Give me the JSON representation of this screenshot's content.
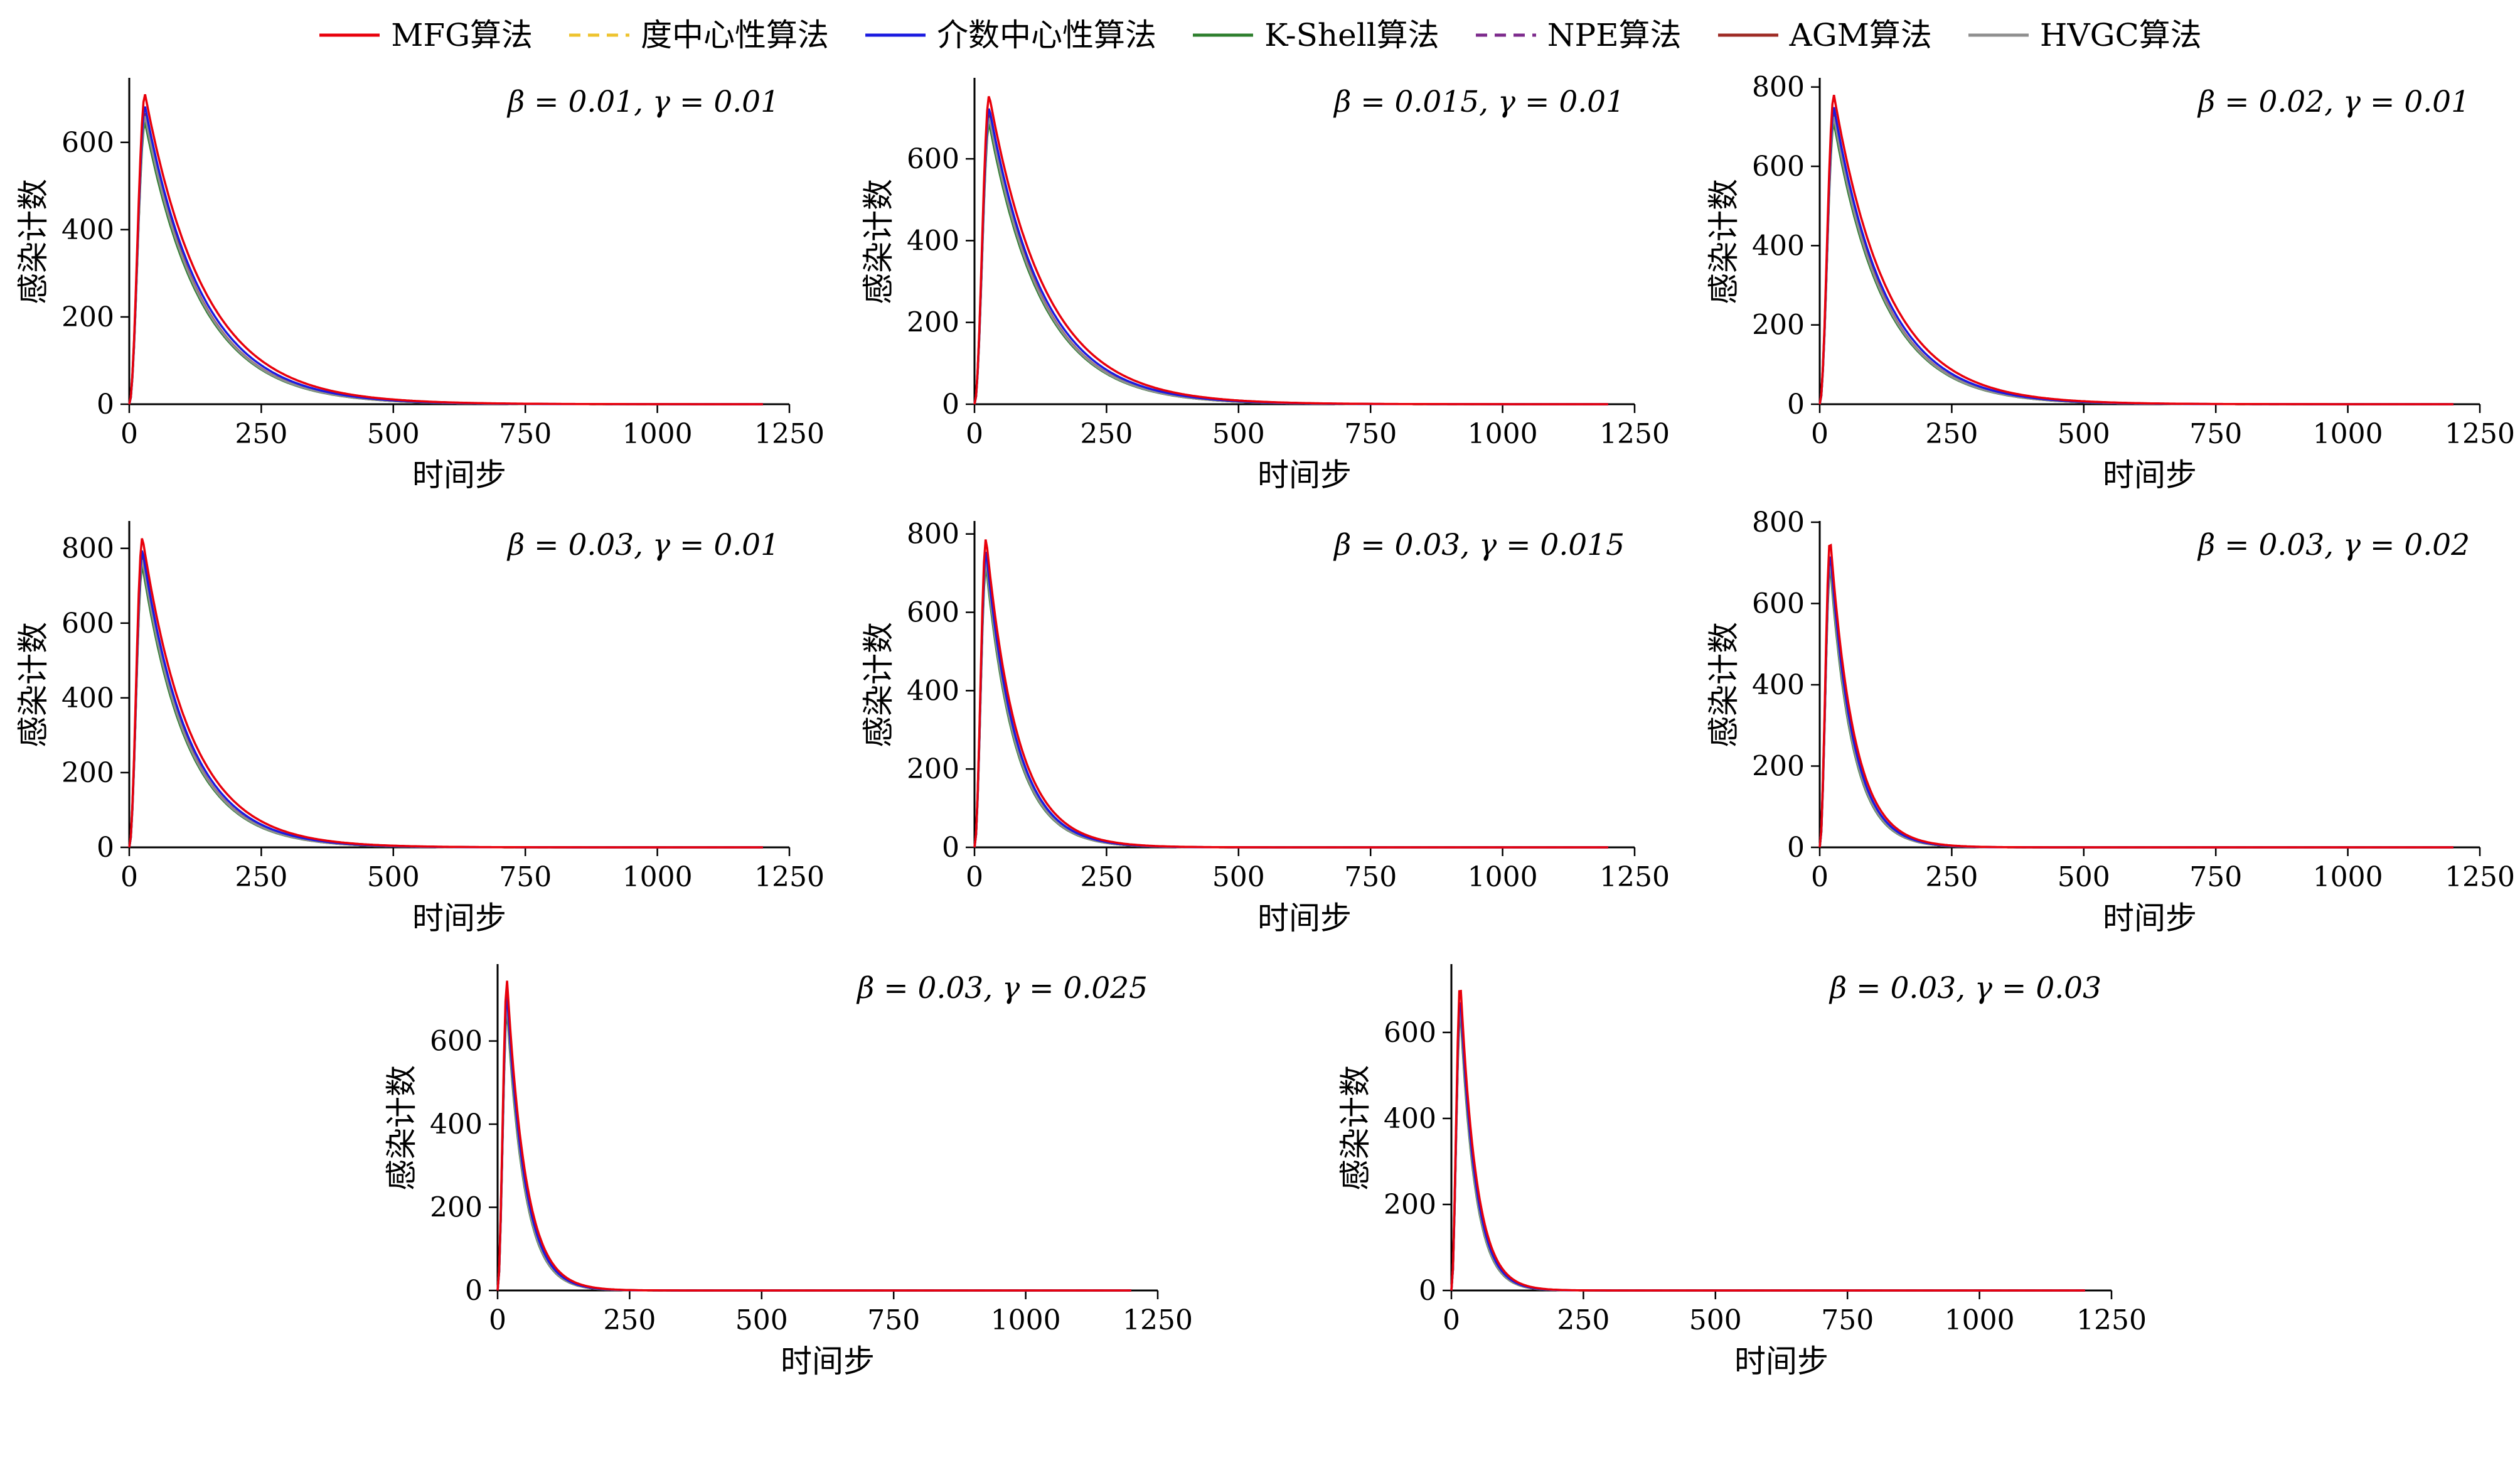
{
  "figure": {
    "background": "#ffffff",
    "description_xlabel": "时间步",
    "description_ylabel": "感染计数"
  },
  "legend": {
    "items": [
      {
        "label": "MFG算法",
        "color": "#e8000b",
        "dash": false
      },
      {
        "label": "度中心性算法",
        "color": "#eec32e",
        "dash": true
      },
      {
        "label": "介数中心性算法",
        "color": "#1a1ae0",
        "dash": false
      },
      {
        "label": "K-Shell算法",
        "color": "#2d7f2d",
        "dash": false
      },
      {
        "label": "NPE算法",
        "color": "#7d2a8c",
        "dash": true
      },
      {
        "label": "AGM算法",
        "color": "#9e2b25",
        "dash": false
      },
      {
        "label": "HVGC算法",
        "color": "#8f8f8f",
        "dash": false
      }
    ]
  },
  "chart_data": [
    {
      "type": "line",
      "title": "β = 0.01, γ = 0.01",
      "beta": 0.01,
      "gamma": 0.01,
      "xlabel": "时间步",
      "ylabel": "感染计数",
      "xlim": [
        0,
        1250
      ],
      "xticks": [
        0,
        250,
        500,
        750,
        1000,
        1250
      ],
      "ylim": [
        0,
        745
      ],
      "yticks": [
        0,
        200,
        400,
        600
      ],
      "peak_time": 30,
      "decay_tau": 105,
      "series_names": [
        "MFG算法",
        "度中心性算法",
        "介数中心性算法",
        "K-Shell算法",
        "NPE算法",
        "AGM算法",
        "HVGC算法"
      ],
      "peaks": [
        710,
        653,
        682,
        646,
        653,
        667,
        660
      ],
      "mfg_sample": {
        "t": [
          0,
          30,
          82,
          135,
          188,
          240,
          345,
          450,
          555,
          900,
          1200
        ],
        "I": [
          0,
          710,
          431,
          261,
          158,
          96,
          36,
          13,
          5,
          0,
          0
        ]
      }
    },
    {
      "type": "line",
      "title": "β = 0.015, γ = 0.01",
      "beta": 0.015,
      "gamma": 0.01,
      "xlabel": "时间步",
      "ylabel": "感染计数",
      "xlim": [
        0,
        1250
      ],
      "xticks": [
        0,
        250,
        500,
        750,
        1000,
        1250
      ],
      "ylim": [
        0,
        795
      ],
      "yticks": [
        0,
        200,
        400,
        600
      ],
      "peak_time": 28,
      "decay_tau": 100,
      "series_names": [
        "MFG算法",
        "度中心性算法",
        "介数中心性算法",
        "K-Shell算法",
        "NPE算法",
        "AGM算法",
        "HVGC算法"
      ],
      "peaks": [
        755,
        695,
        725,
        687,
        695,
        710,
        702
      ],
      "mfg_sample": {
        "t": [
          0,
          28,
          78,
          128,
          178,
          228,
          328,
          428,
          528,
          900,
          1200
        ],
        "I": [
          0,
          755,
          458,
          278,
          168,
          102,
          38,
          14,
          5,
          0,
          0
        ]
      }
    },
    {
      "type": "line",
      "title": "β = 0.02, γ = 0.01",
      "beta": 0.02,
      "gamma": 0.01,
      "xlabel": "时间步",
      "ylabel": "感染计数",
      "xlim": [
        0,
        1250
      ],
      "xticks": [
        0,
        250,
        500,
        750,
        1000,
        1250
      ],
      "ylim": [
        0,
        820
      ],
      "yticks": [
        0,
        200,
        400,
        600,
        800
      ],
      "peak_time": 27,
      "decay_tau": 95,
      "series_names": [
        "MFG算法",
        "度中心性算法",
        "介数中心性算法",
        "K-Shell算法",
        "NPE算法",
        "AGM算法",
        "HVGC算法"
      ],
      "peaks": [
        780,
        718,
        749,
        710,
        718,
        733,
        725
      ],
      "mfg_sample": {
        "t": [
          0,
          27,
          75,
          122,
          170,
          217,
          312,
          407,
          502,
          900,
          1200
        ],
        "I": [
          0,
          780,
          473,
          287,
          174,
          105,
          39,
          14,
          5,
          0,
          0
        ]
      }
    },
    {
      "type": "line",
      "title": "β = 0.03, γ = 0.01",
      "beta": 0.03,
      "gamma": 0.01,
      "xlabel": "时间步",
      "ylabel": "感染计数",
      "xlim": [
        0,
        1250
      ],
      "xticks": [
        0,
        250,
        500,
        750,
        1000,
        1250
      ],
      "ylim": [
        0,
        870
      ],
      "yticks": [
        0,
        200,
        400,
        600,
        800
      ],
      "peak_time": 25,
      "decay_tau": 85,
      "series_names": [
        "MFG算法",
        "度中心性算法",
        "介数中心性算法",
        "K-Shell算法",
        "NPE算法",
        "AGM算法",
        "HVGC算法"
      ],
      "peaks": [
        830,
        764,
        797,
        755,
        764,
        780,
        772
      ],
      "mfg_sample": {
        "t": [
          0,
          25,
          68,
          110,
          152,
          195,
          280,
          365,
          450,
          900,
          1200
        ],
        "I": [
          0,
          830,
          504,
          305,
          185,
          112,
          42,
          15,
          6,
          0,
          0
        ]
      }
    },
    {
      "type": "line",
      "title": "β = 0.03, γ = 0.015",
      "beta": 0.03,
      "gamma": 0.015,
      "xlabel": "时间步",
      "ylabel": "感染计数",
      "xlim": [
        0,
        1250
      ],
      "xticks": [
        0,
        250,
        500,
        750,
        1000,
        1250
      ],
      "ylim": [
        0,
        830
      ],
      "yticks": [
        0,
        200,
        400,
        600,
        800
      ],
      "peak_time": 22,
      "decay_tau": 55,
      "series_names": [
        "MFG算法",
        "度中心性算法",
        "介数中心性算法",
        "K-Shell算法",
        "NPE算法",
        "AGM算法",
        "HVGC算法"
      ],
      "peaks": [
        790,
        727,
        758,
        719,
        727,
        743,
        735
      ],
      "mfg_sample": {
        "t": [
          0,
          22,
          50,
          77,
          105,
          132,
          187,
          242,
          297,
          800,
          1200
        ],
        "I": [
          0,
          790,
          480,
          291,
          176,
          107,
          40,
          14,
          6,
          0,
          0
        ]
      }
    },
    {
      "type": "line",
      "title": "β = 0.03, γ = 0.02",
      "beta": 0.03,
      "gamma": 0.02,
      "xlabel": "时间步",
      "ylabel": "感染计数",
      "xlim": [
        0,
        1250
      ],
      "xticks": [
        0,
        250,
        500,
        750,
        1000,
        1250
      ],
      "ylim": [
        0,
        800
      ],
      "yticks": [
        0,
        200,
        400,
        600,
        800
      ],
      "peak_time": 20,
      "decay_tau": 42,
      "series_names": [
        "MFG算法",
        "度中心性算法",
        "介数中心性算法",
        "K-Shell算法",
        "NPE算法",
        "AGM算法",
        "HVGC算法"
      ],
      "peaks": [
        760,
        699,
        730,
        692,
        699,
        714,
        707
      ],
      "mfg_sample": {
        "t": [
          0,
          20,
          41,
          62,
          83,
          104,
          146,
          188,
          230,
          700,
          1200
        ],
        "I": [
          0,
          760,
          461,
          280,
          169,
          103,
          38,
          14,
          5,
          0,
          0
        ]
      }
    },
    {
      "type": "line",
      "title": "β = 0.03, γ = 0.025",
      "beta": 0.03,
      "gamma": 0.025,
      "xlabel": "时间步",
      "ylabel": "感染计数",
      "xlim": [
        0,
        1250
      ],
      "xticks": [
        0,
        250,
        500,
        750,
        1000,
        1250
      ],
      "ylim": [
        0,
        782
      ],
      "yticks": [
        0,
        200,
        400,
        600
      ],
      "peak_time": 18,
      "decay_tau": 33,
      "series_names": [
        "MFG算法",
        "度中心性算法",
        "介数中心性算法",
        "K-Shell算法",
        "NPE算法",
        "AGM算法",
        "HVGC算法"
      ],
      "peaks": [
        745,
        685,
        715,
        678,
        685,
        700,
        693
      ],
      "mfg_sample": {
        "t": [
          0,
          18,
          35,
          51,
          68,
          84,
          117,
          150,
          183,
          600,
          1200
        ],
        "I": [
          0,
          745,
          452,
          274,
          166,
          101,
          37,
          13,
          5,
          0,
          0
        ]
      }
    },
    {
      "type": "line",
      "title": "β = 0.03, γ = 0.03",
      "beta": 0.03,
      "gamma": 0.03,
      "xlabel": "时间步",
      "ylabel": "感染计数",
      "xlim": [
        0,
        1250
      ],
      "xticks": [
        0,
        250,
        500,
        750,
        1000,
        1250
      ],
      "ylim": [
        0,
        756
      ],
      "yticks": [
        0,
        200,
        400,
        600
      ],
      "peak_time": 17,
      "decay_tau": 28,
      "series_names": [
        "MFG算法",
        "度中心性算法",
        "介数中心性算法",
        "K-Shell算法",
        "NPE算法",
        "AGM算法",
        "HVGC算法"
      ],
      "peaks": [
        720,
        662,
        691,
        655,
        662,
        677,
        670
      ],
      "mfg_sample": {
        "t": [
          0,
          17,
          31,
          45,
          59,
          73,
          101,
          129,
          157,
          600,
          1200
        ],
        "I": [
          0,
          720,
          437,
          265,
          161,
          97,
          36,
          13,
          5,
          0,
          0
        ]
      }
    }
  ]
}
